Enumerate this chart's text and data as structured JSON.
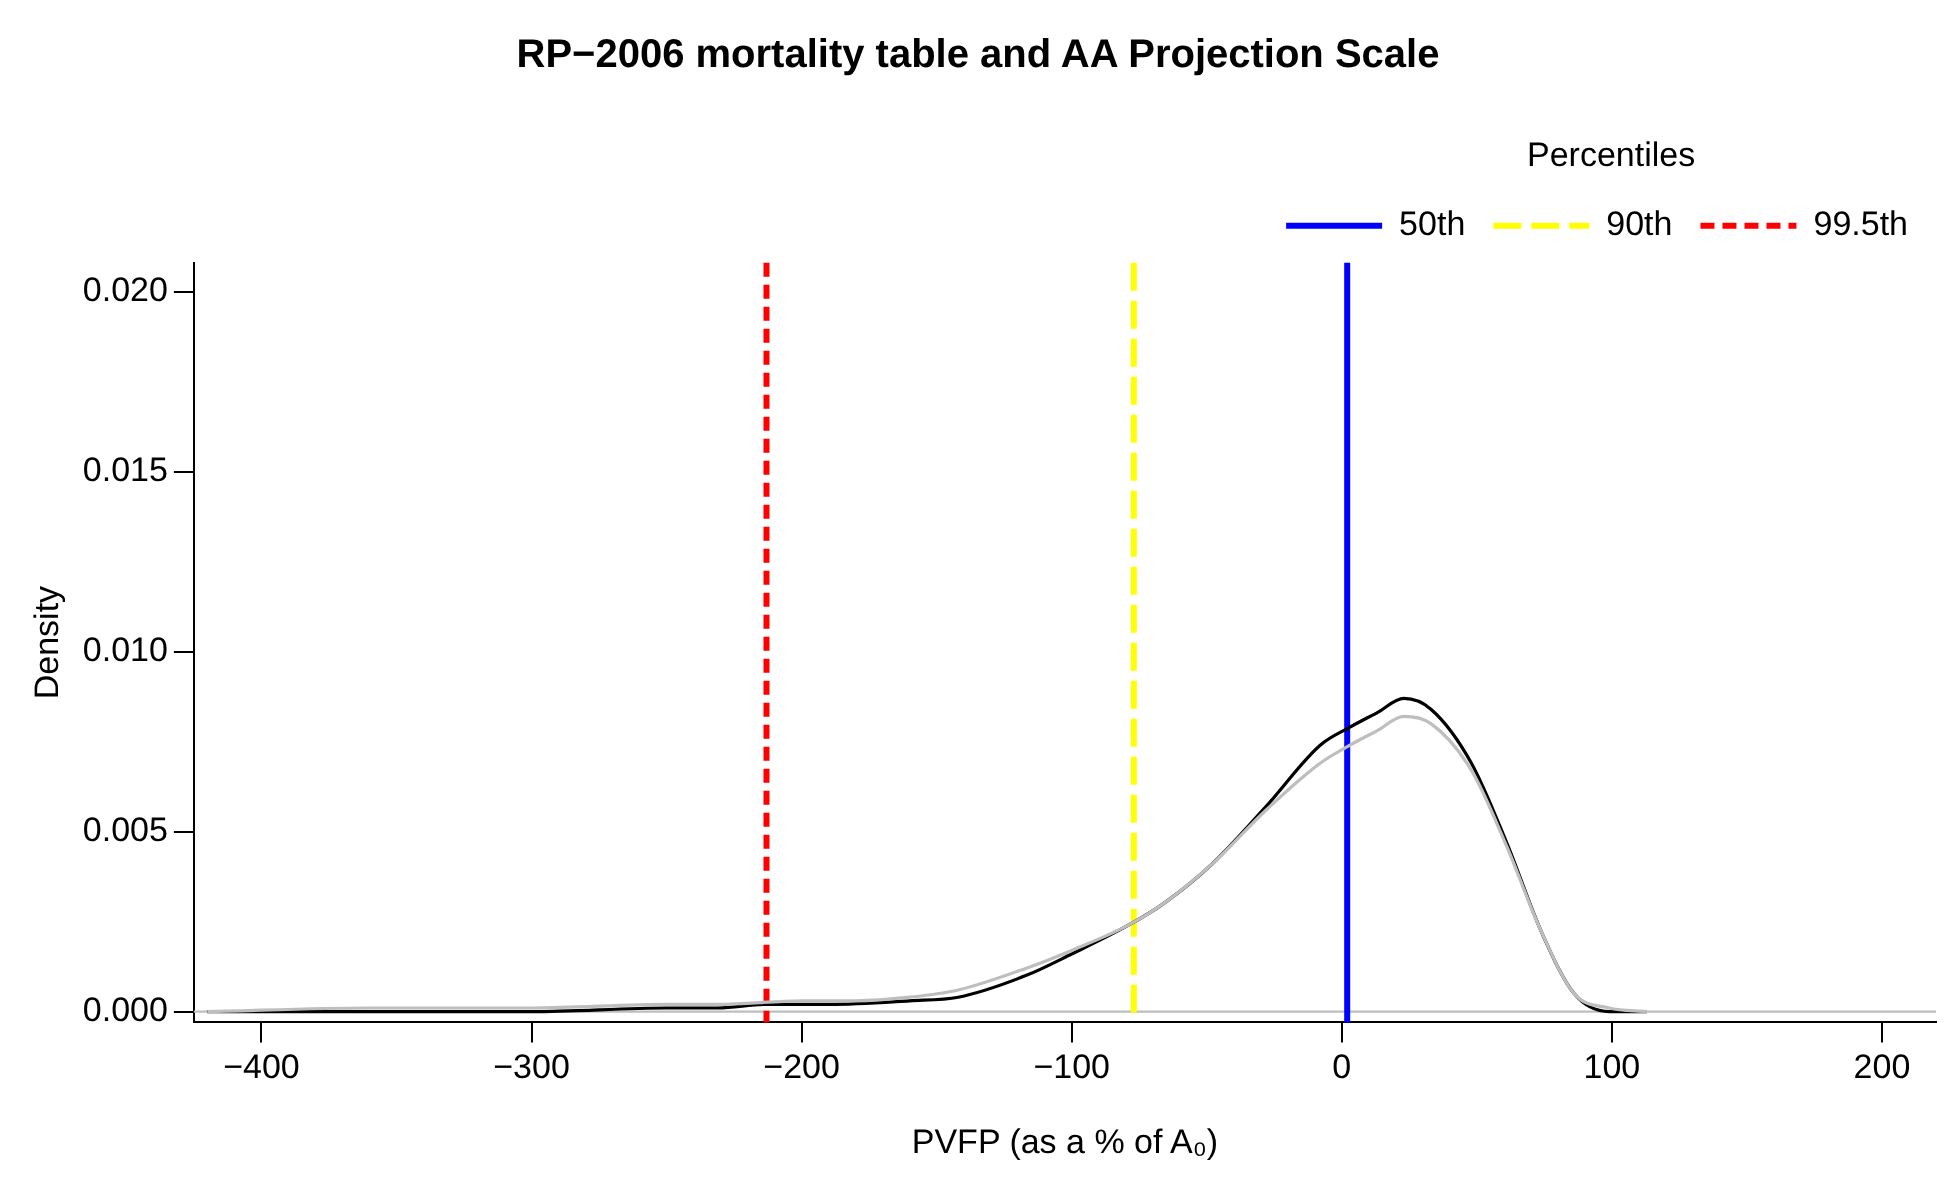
{
  "chart_data": {
    "type": "line",
    "title": "RP−2006 mortality table and AA Projection Scale",
    "xlabel": "PVFP (as a % of A₀)",
    "ylabel": "Density",
    "legend_title": "Percentiles",
    "legend": "top right",
    "grid": false,
    "marker": "none",
    "xlim": [
      -425,
      220
    ],
    "xticks": [
      {
        "value": -400,
        "label": "−400"
      },
      {
        "value": -300,
        "label": "−300"
      },
      {
        "value": -200,
        "label": "−200"
      },
      {
        "value": -100,
        "label": "−100"
      },
      0,
      100,
      200
    ],
    "ylim": [
      -0.0003,
      0.0208
    ],
    "yticks": [
      {
        "value": 0,
        "label": "0.000"
      },
      {
        "value": 0.005,
        "label": "0.005"
      },
      {
        "value": 0.01,
        "label": "0.010"
      },
      {
        "value": 0.015,
        "label": "0.015"
      },
      {
        "value": 0.02,
        "label": "0.020"
      }
    ],
    "series": [
      {
        "color": "#bebebe",
        "x": [
          -420,
          -360,
          -300,
          -250,
          -231,
          -200,
          -180,
          -160,
          -142,
          -117,
          -100,
          -79,
          -66,
          -48,
          -28,
          -8,
          3,
          13,
          23,
          33,
          48,
          61,
          74,
          86,
          99,
          113
        ],
        "values": [
          0,
          0.0001,
          0.0001,
          0.0002,
          0.0002,
          0.0003,
          0.0003,
          0.0004,
          0.0006,
          0.0012,
          0.0017,
          0.0024,
          0.003,
          0.0041,
          0.0056,
          0.0069,
          0.0074,
          0.0078,
          0.0082,
          0.008,
          0.0067,
          0.0046,
          0.0022,
          0.0005,
          0.0001,
          0
        ]
      },
      {
        "color": "#000000",
        "x": [
          -420,
          -360,
          -300,
          -250,
          -231,
          -213,
          -190,
          -160,
          -142,
          -117,
          -100,
          -79,
          -66,
          -48,
          -28,
          -8,
          3,
          13,
          23,
          33,
          48,
          61,
          74,
          86,
          99,
          113
        ],
        "values": [
          0,
          0,
          0,
          0.0001,
          0.0001,
          0.0002,
          0.0002,
          0.0003,
          0.0004,
          0.001,
          0.0016,
          0.0024,
          0.003,
          0.0041,
          0.0057,
          0.0074,
          0.0079,
          0.0083,
          0.0087,
          0.0084,
          0.0069,
          0.0047,
          0.0022,
          0.0005,
          0,
          0
        ]
      }
    ],
    "ref_lines": [
      {
        "axis": "y",
        "value": 0,
        "color": "#bebebe",
        "line_style": "solid"
      },
      {
        "axis": "x",
        "value": 2,
        "label": "50th",
        "color": "#0000ff",
        "line_style": "solid"
      },
      {
        "axis": "x",
        "value": -77,
        "label": "90th",
        "color": "#ffff00",
        "line_style": "dashed"
      },
      {
        "axis": "x",
        "value": -213,
        "label": "99.5th",
        "color": "#ff0000",
        "line_style": "dotted"
      }
    ]
  }
}
